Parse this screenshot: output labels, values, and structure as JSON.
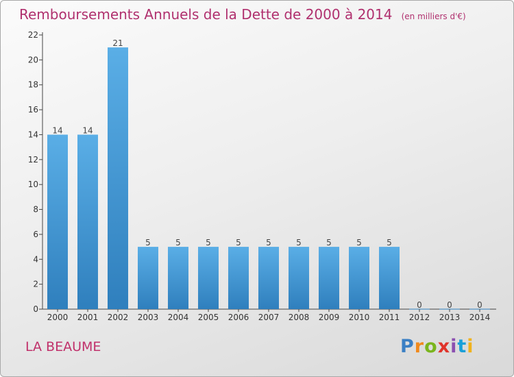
{
  "title": "Remboursements Annuels de la Dette de 2000 à 2014",
  "unit": "(en milliers d'€)",
  "commune": "LA BEAUME",
  "logo": {
    "text": "Proxiti",
    "colors": [
      "#3a7fc4",
      "#f08a1d",
      "#7ab51d",
      "#e0342b",
      "#8b4fb0",
      "#1aa0d8",
      "#f0b21d"
    ]
  },
  "colors": {
    "title": "#b0306e",
    "bar_light": "#5aaee6",
    "bar_dark": "#2f7fbd",
    "axis": "#444444"
  },
  "chart_data": {
    "type": "bar",
    "title": "Remboursements Annuels de la Dette de 2000 à 2014",
    "categories": [
      "2000",
      "2001",
      "2002",
      "2003",
      "2004",
      "2005",
      "2006",
      "2007",
      "2008",
      "2009",
      "2010",
      "2011",
      "2012",
      "2013",
      "2014"
    ],
    "values": [
      14,
      14,
      21,
      5,
      5,
      5,
      5,
      5,
      5,
      5,
      5,
      5,
      0,
      0,
      0
    ],
    "ylim": [
      0,
      22
    ],
    "yticks": [
      0,
      2,
      4,
      6,
      8,
      10,
      12,
      14,
      16,
      18,
      20,
      22
    ],
    "grid": false,
    "data_labels": true
  }
}
